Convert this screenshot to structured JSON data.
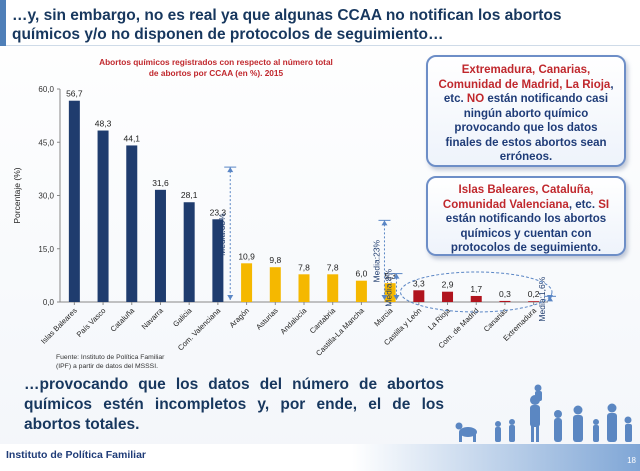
{
  "slide": {
    "title": "…y, sin embargo, no es real ya que algunas CCAA no notifican los abortos químicos y/o no disponen de protocolos de seguimiento…",
    "bottom_text": "…provocando que los datos del número de abortos químicos estén incompletos y, por ende, el de los abortos totales.",
    "footer_org": "Instituto de Política Familiar",
    "page_number": "18",
    "source_line1": "Fuente: Instituto de Política Familiar",
    "source_line2": "(IPF) a partir de datos del MSSSI."
  },
  "callouts": {
    "first": {
      "red": "Extremadura, Canarias, Comunidad de Madrid, La Rioja",
      "mid1": ", etc. ",
      "red2": "NO",
      "tail": " están notificando casi ningún aborto químico provocando que los datos finales de estos abortos sean erróneos."
    },
    "second": {
      "red": "Islas Baleares, Cataluña, Comunidad Valenciana",
      "mid1": ", etc. ",
      "red2": "SI",
      "tail": " están notificando los abortos químicos y cuentan con protocolos de seguimiento."
    }
  },
  "colors": {
    "navy": "#1f3c6e",
    "yellow": "#f5b800",
    "red": "#b0141e",
    "annotation": "#5a86c5"
  },
  "chart_data": {
    "type": "bar",
    "title": "Abortos químicos registrados con respecto al número total de abortos por CCAA (en %). 2015",
    "ylabel": "Porcentaje (%)",
    "xlabel": "",
    "ylim": [
      0,
      60
    ],
    "yticks": [
      "0,0",
      "15,0",
      "30,0",
      "45,0",
      "60,0"
    ],
    "grid": false,
    "categories": [
      "Islas Baleares",
      "País Vasco",
      "Cataluña",
      "Navarra",
      "Galicia",
      "Com. Valenciana",
      "Aragón",
      "Asturias",
      "Andalucía",
      "Cantabria",
      "Castilla-La Mancha",
      "Murcia",
      "Castilla y León",
      "La Rioja",
      "Com. de Madrid",
      "Canarias",
      "Extremadura"
    ],
    "values": [
      56.7,
      48.3,
      44.1,
      31.6,
      28.1,
      23.3,
      10.9,
      9.8,
      7.8,
      7.8,
      6.0,
      5.3,
      3.3,
      2.9,
      1.7,
      0.3,
      0.2
    ],
    "value_labels": [
      "56,7",
      "48,3",
      "44,1",
      "31,6",
      "28,1",
      "23,3",
      "10,9",
      "9,8",
      "7,8",
      "7,8",
      "6,0",
      "5,3",
      "3,3",
      "2,9",
      "1,7",
      "0,3",
      "0,2"
    ],
    "groups": [
      "navy",
      "navy",
      "navy",
      "navy",
      "navy",
      "navy",
      "yellow",
      "yellow",
      "yellow",
      "yellow",
      "yellow",
      "yellow",
      "red",
      "red",
      "red",
      "red",
      "red"
    ],
    "annotations": [
      {
        "label": "Media:38%",
        "value": 38
      },
      {
        "label": "Media:23%",
        "value": 23
      },
      {
        "label": "Media:8%",
        "value": 8
      },
      {
        "label": "Media:1,6%",
        "value": 1.6
      }
    ]
  }
}
